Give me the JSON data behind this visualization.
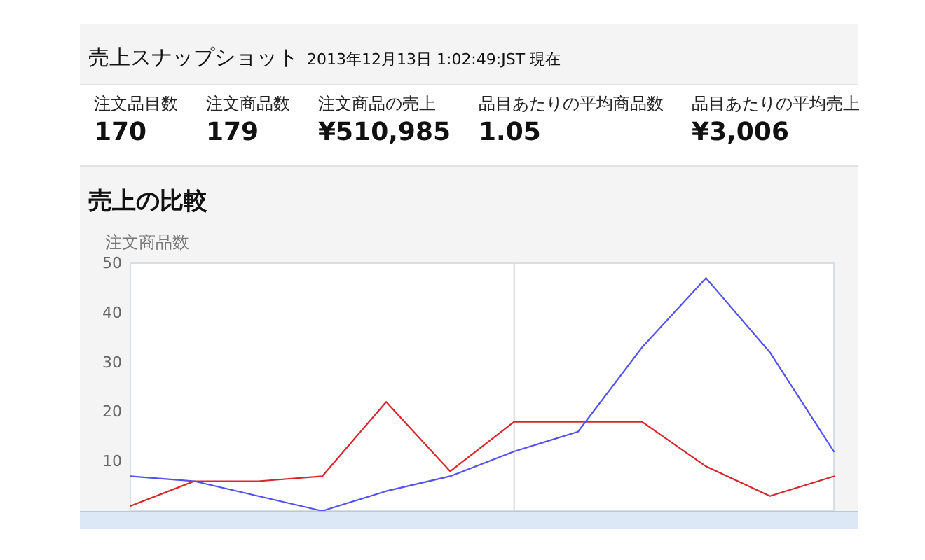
{
  "chart_data": [
    {
      "type": "other",
      "title": "売上スナップショット",
      "subtitle": "2013年12月13日 1:02:49:JST 現在",
      "categories": [
        "注文品目数",
        "注文商品数",
        "注文商品の売上",
        "品目あたりの平均商品数",
        "品目あたりの平均売上"
      ],
      "value_labels": [
        "170",
        "179",
        "¥510,985",
        "1.05",
        "¥3,006"
      ]
    },
    {
      "type": "line",
      "title": "売上の比較",
      "ylabel": "注文商品数",
      "categories": [
        null,
        null,
        null,
        null,
        null,
        null,
        null,
        null,
        null,
        null,
        null,
        null
      ],
      "series": [
        {
          "color": "#d9262b",
          "values": [
            1,
            6,
            6,
            7,
            22,
            8,
            18,
            18,
            18,
            9,
            3,
            7
          ]
        },
        {
          "color": "#5252f2",
          "values": [
            7,
            6,
            3,
            0,
            4,
            7,
            12,
            16,
            33,
            47,
            32,
            12
          ]
        }
      ],
      "ylim": [
        0,
        50
      ],
      "yticks": [
        10,
        20,
        30,
        40,
        50
      ],
      "tick_labels": "y"
    }
  ]
}
